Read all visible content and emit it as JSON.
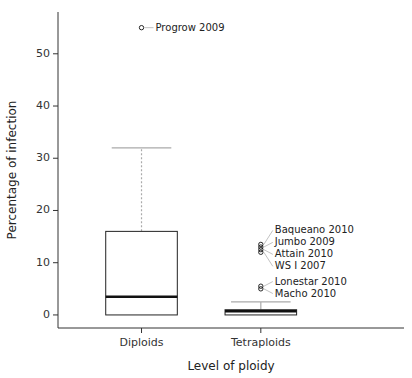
{
  "chart_data": {
    "type": "box",
    "xlabel": "Level of ploidy",
    "ylabel": "Percentage of infection",
    "categories": [
      "Diploids",
      "Tetraploids"
    ],
    "color": "#aaaaaa",
    "boxes": [
      {
        "q1": 0.0,
        "q3": 16.0,
        "median": 3.5,
        "whisker_low": 0.0,
        "whisker_high": 32.0,
        "line_style": "dotted",
        "outliers": [
          55.0
        ],
        "outlier_labels": [
          "Progrow 2009"
        ]
      },
      {
        "q1": 0.0,
        "q3": 1.0,
        "median": 0.7,
        "whisker_low": 0.0,
        "whisker_high": 2.5,
        "line_style": "solid",
        "outliers": [
          13.5,
          13.0,
          12.5,
          12.0,
          5.5,
          5.0
        ],
        "outlier_labels": [
          "Baqueano 2010",
          "Jumbo 2009",
          "Attain 2010",
          "WS I 2007",
          "Lonestar 2010",
          "Macho 2010"
        ]
      }
    ],
    "ylim": [
      -2.5,
      58
    ],
    "yticks": [
      0,
      10,
      20,
      30,
      40,
      50
    ]
  }
}
